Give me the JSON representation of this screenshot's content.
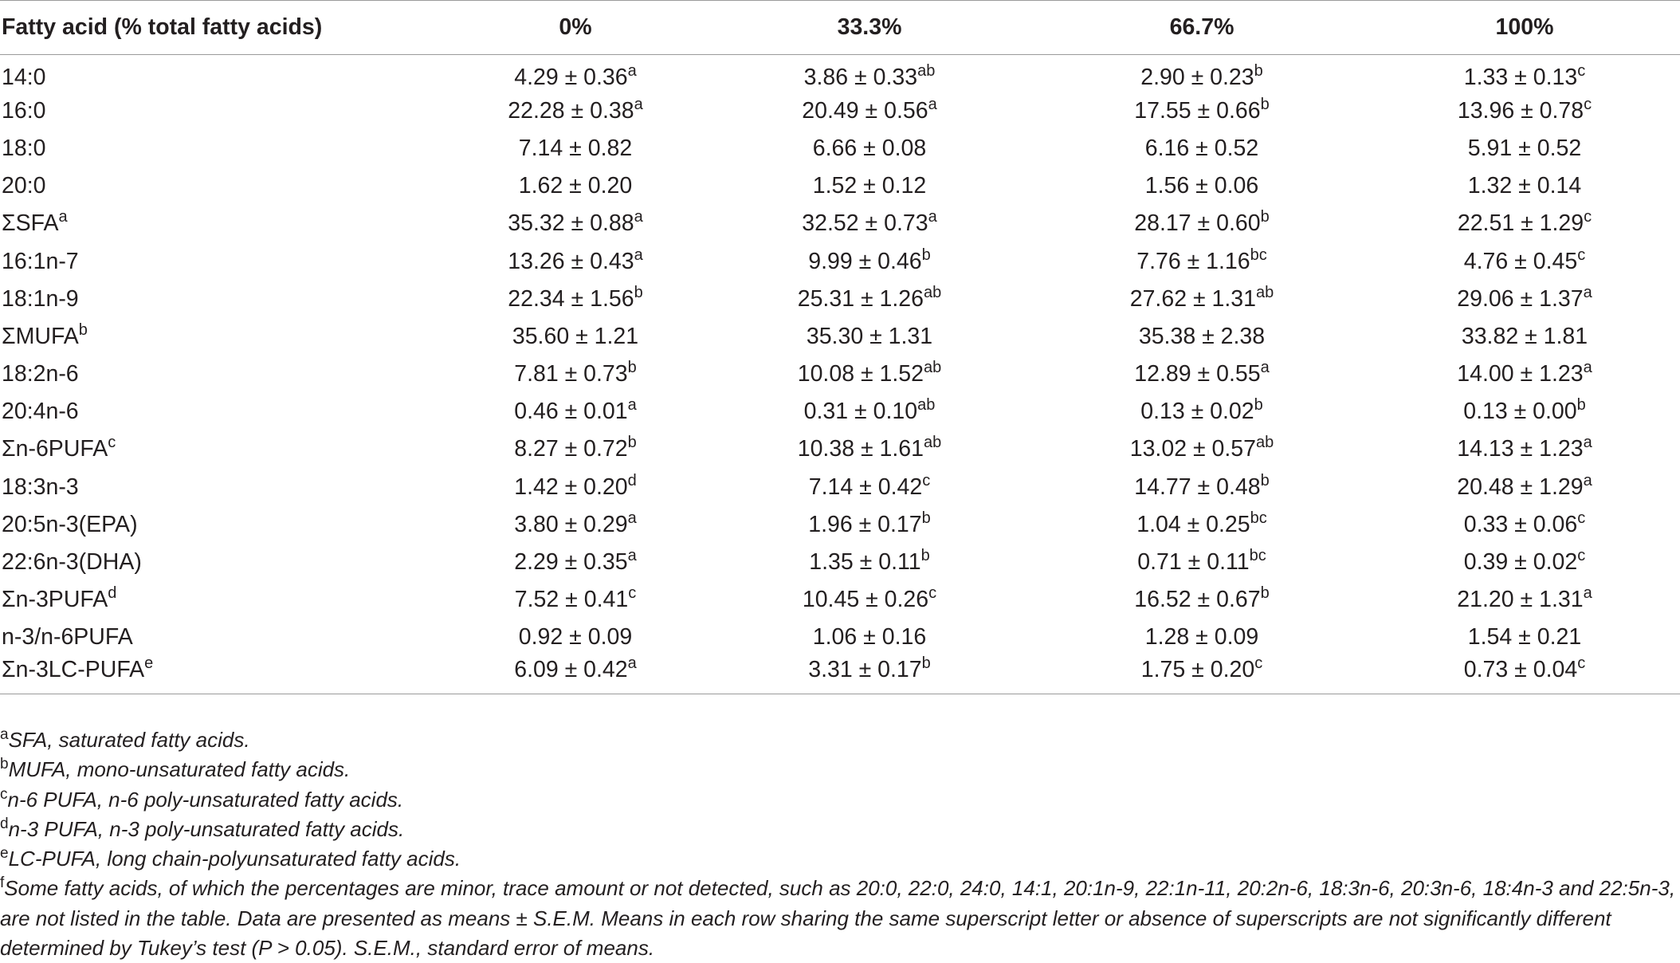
{
  "table": {
    "headers": [
      "Fatty acid (% total fatty acids)",
      "0%",
      "33.3%",
      "66.7%",
      "100%"
    ],
    "rows": [
      {
        "name": "14:0",
        "name_sup": "",
        "cells": [
          [
            "4.29 ± 0.36",
            "a"
          ],
          [
            "3.86 ± 0.33",
            "ab"
          ],
          [
            "2.90 ± 0.23",
            "b"
          ],
          [
            "1.33 ± 0.13",
            "c"
          ]
        ]
      },
      {
        "name": "16:0",
        "name_sup": "",
        "cells": [
          [
            "22.28 ± 0.38",
            "a"
          ],
          [
            "20.49 ± 0.56",
            "a"
          ],
          [
            "17.55 ± 0.66",
            "b"
          ],
          [
            "13.96 ± 0.78",
            "c"
          ]
        ]
      },
      {
        "name": "18:0",
        "name_sup": "",
        "cells": [
          [
            "7.14 ± 0.82",
            ""
          ],
          [
            "6.66 ± 0.08",
            ""
          ],
          [
            "6.16 ± 0.52",
            ""
          ],
          [
            "5.91 ± 0.52",
            ""
          ]
        ]
      },
      {
        "name": "20:0",
        "name_sup": "",
        "cells": [
          [
            "1.62 ± 0.20",
            ""
          ],
          [
            "1.52 ± 0.12",
            ""
          ],
          [
            "1.56 ± 0.06",
            ""
          ],
          [
            "1.32 ± 0.14",
            ""
          ]
        ]
      },
      {
        "name": "ΣSFA",
        "name_sup": "a",
        "cells": [
          [
            "35.32 ± 0.88",
            "a"
          ],
          [
            "32.52 ± 0.73",
            "a"
          ],
          [
            "28.17 ± 0.60",
            "b"
          ],
          [
            "22.51 ± 1.29",
            "c"
          ]
        ]
      },
      {
        "name": "16:1n-7",
        "name_sup": "",
        "cells": [
          [
            "13.26 ± 0.43",
            "a"
          ],
          [
            "9.99 ± 0.46",
            "b"
          ],
          [
            "7.76 ± 1.16",
            "bc"
          ],
          [
            "4.76 ± 0.45",
            "c"
          ]
        ]
      },
      {
        "name": "18:1n-9",
        "name_sup": "",
        "cells": [
          [
            "22.34 ± 1.56",
            "b"
          ],
          [
            "25.31 ± 1.26",
            "ab"
          ],
          [
            "27.62 ± 1.31",
            "ab"
          ],
          [
            "29.06 ± 1.37",
            "a"
          ]
        ]
      },
      {
        "name": "ΣMUFA",
        "name_sup": "b",
        "cells": [
          [
            "35.60 ± 1.21",
            ""
          ],
          [
            "35.30 ± 1.31",
            ""
          ],
          [
            "35.38 ± 2.38",
            ""
          ],
          [
            "33.82 ± 1.81",
            ""
          ]
        ]
      },
      {
        "name": "18:2n-6",
        "name_sup": "",
        "cells": [
          [
            "7.81 ± 0.73",
            "b"
          ],
          [
            "10.08 ± 1.52",
            "ab"
          ],
          [
            "12.89 ± 0.55",
            "a"
          ],
          [
            "14.00 ± 1.23",
            "a"
          ]
        ]
      },
      {
        "name": "20:4n-6",
        "name_sup": "",
        "cells": [
          [
            "0.46 ± 0.01",
            "a"
          ],
          [
            "0.31 ± 0.10",
            "ab"
          ],
          [
            "0.13 ± 0.02",
            "b"
          ],
          [
            "0.13 ± 0.00",
            "b"
          ]
        ]
      },
      {
        "name": "Σn-6PUFA",
        "name_sup": "c",
        "cells": [
          [
            "8.27 ± 0.72",
            "b"
          ],
          [
            "10.38 ± 1.61",
            "ab"
          ],
          [
            "13.02 ± 0.57",
            "ab"
          ],
          [
            "14.13 ± 1.23",
            "a"
          ]
        ]
      },
      {
        "name": "18:3n-3",
        "name_sup": "",
        "cells": [
          [
            "1.42 ± 0.20",
            "d"
          ],
          [
            "7.14 ± 0.42",
            "c"
          ],
          [
            "14.77 ± 0.48",
            "b"
          ],
          [
            "20.48 ± 1.29",
            "a"
          ]
        ]
      },
      {
        "name": "20:5n-3(EPA)",
        "name_sup": "",
        "cells": [
          [
            "3.80 ± 0.29",
            "a"
          ],
          [
            "1.96 ± 0.17",
            "b"
          ],
          [
            "1.04 ± 0.25",
            "bc"
          ],
          [
            "0.33 ± 0.06",
            "c"
          ]
        ]
      },
      {
        "name": "22:6n-3(DHA)",
        "name_sup": "",
        "cells": [
          [
            "2.29 ± 0.35",
            "a"
          ],
          [
            "1.35 ± 0.11",
            "b"
          ],
          [
            "0.71 ± 0.11",
            "bc"
          ],
          [
            "0.39 ± 0.02",
            "c"
          ]
        ]
      },
      {
        "name": "Σn-3PUFA",
        "name_sup": "d",
        "cells": [
          [
            "7.52 ± 0.41",
            "c"
          ],
          [
            "10.45 ± 0.26",
            "c"
          ],
          [
            "16.52 ± 0.67",
            "b"
          ],
          [
            "21.20 ± 1.31",
            "a"
          ]
        ]
      },
      {
        "name": "n-3/n-6PUFA",
        "name_sup": "",
        "cells": [
          [
            "0.92 ± 0.09",
            ""
          ],
          [
            "1.06 ± 0.16",
            ""
          ],
          [
            "1.28 ± 0.09",
            ""
          ],
          [
            "1.54 ± 0.21",
            ""
          ]
        ]
      },
      {
        "name": "Σn-3LC-PUFA",
        "name_sup": "e",
        "cells": [
          [
            "6.09 ± 0.42",
            "a"
          ],
          [
            "3.31 ± 0.17",
            "b"
          ],
          [
            "1.75 ± 0.20",
            "c"
          ],
          [
            "0.73 ± 0.04",
            "c"
          ]
        ]
      }
    ]
  },
  "footnotes": [
    {
      "mark": "a",
      "text": "SFA, saturated fatty acids."
    },
    {
      "mark": "b",
      "text": "MUFA, mono-unsaturated fatty acids."
    },
    {
      "mark": "c",
      "text": "n-6 PUFA, n-6 poly-unsaturated fatty acids."
    },
    {
      "mark": "d",
      "text": "n-3 PUFA, n-3 poly-unsaturated fatty acids."
    },
    {
      "mark": "e",
      "text": "LC-PUFA, long chain-polyunsaturated fatty acids."
    },
    {
      "mark": "f",
      "text": "Some fatty acids, of which the percentages are minor, trace amount or not detected, such as 20:0, 22:0, 24:0, 14:1, 20:1n-9, 22:1n-11, 20:2n-6, 18:3n-6, 20:3n-6, 18:4n-3 and 22:5n-3, are not listed in the table. Data are presented as means ± S.E.M. Means in each row sharing the same superscript letter or absence of superscripts are not significantly different determined by Tukey’s test (P > 0.05). S.E.M., standard error of means."
    }
  ]
}
